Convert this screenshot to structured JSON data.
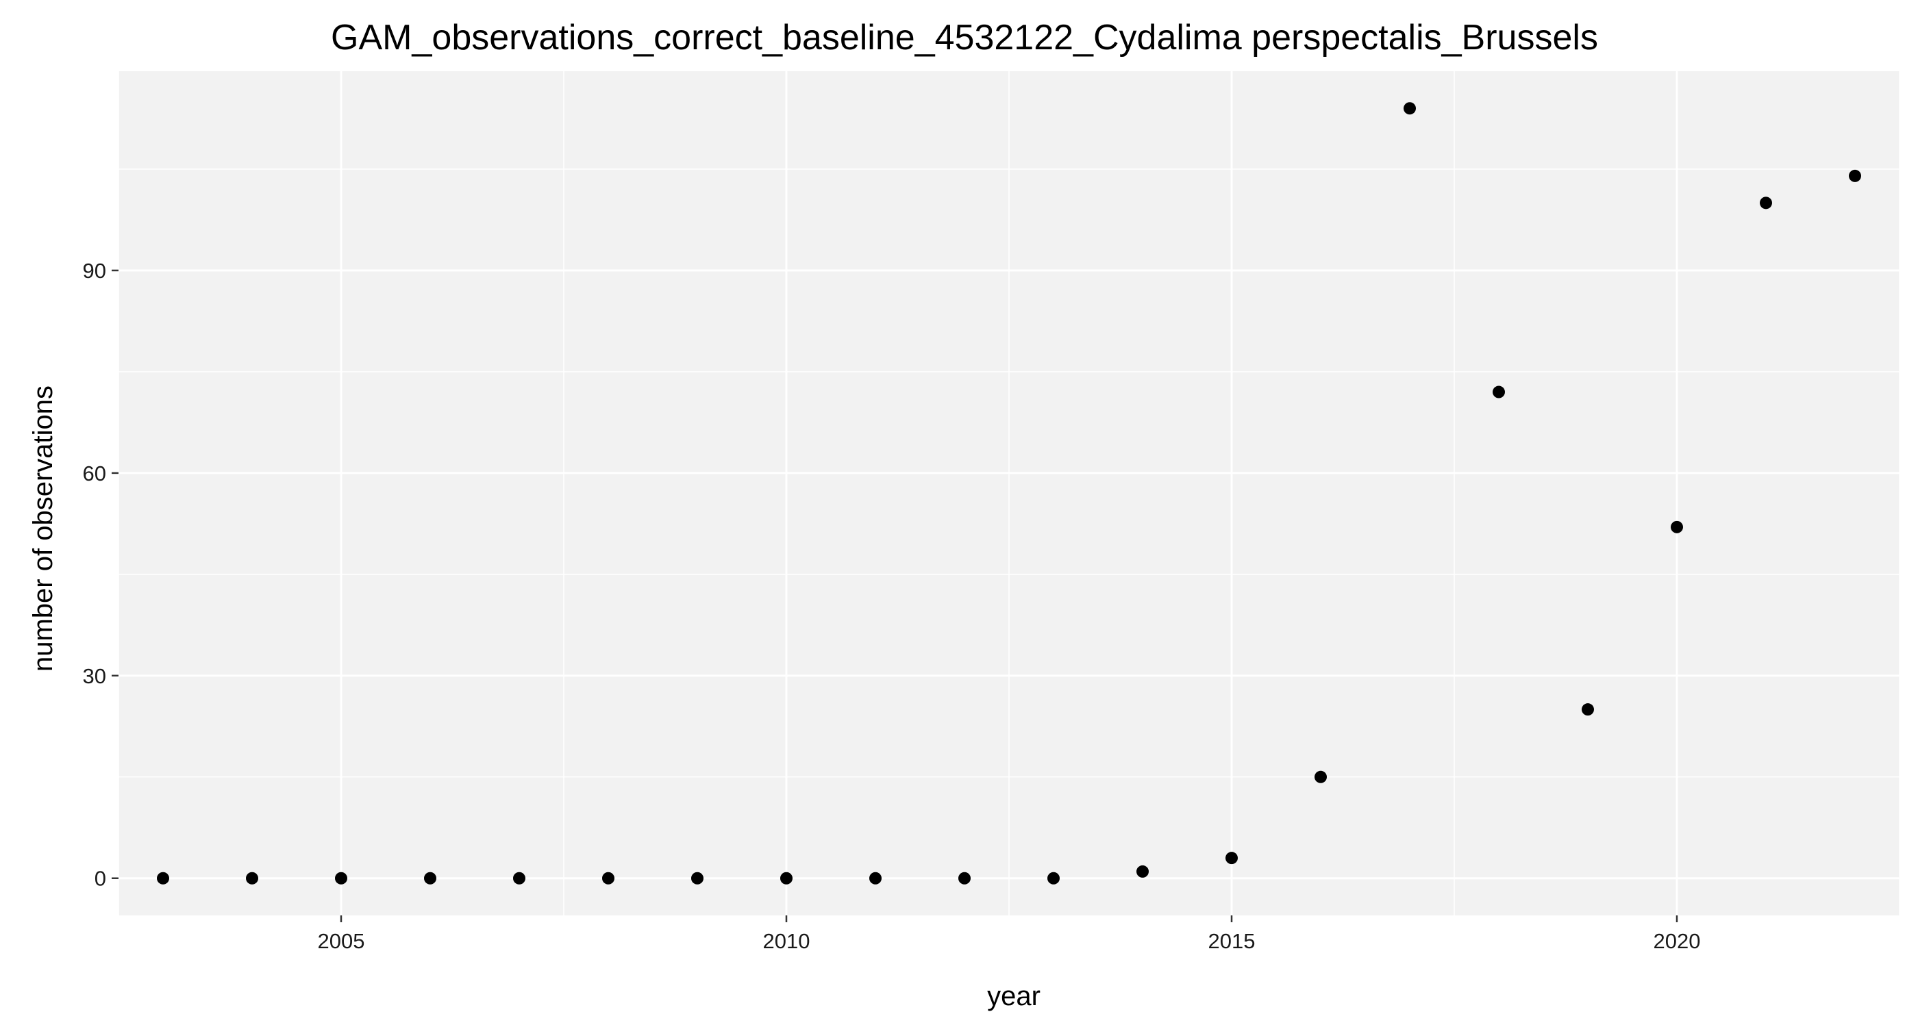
{
  "chart_data": {
    "type": "scatter",
    "title": "GAM_observations_correct_baseline_4532122_Cydalima perspectalis_Brussels",
    "xlabel": "year",
    "ylabel": "number of observations",
    "xlim": [
      2002.5,
      2022.5
    ],
    "ylim": [
      -5.5,
      119.5
    ],
    "x_ticks": [
      2005,
      2010,
      2015,
      2020
    ],
    "x_minor_ticks": [
      2002.5,
      2007.5,
      2012.5,
      2017.5,
      2022.5
    ],
    "y_ticks": [
      0,
      30,
      60,
      90
    ],
    "y_minor_ticks": [
      15,
      45,
      75,
      105
    ],
    "grid": true,
    "legend": "none",
    "colors": {
      "panel_background": "#f2f2f2",
      "grid": "#ffffff",
      "point": "#000000"
    },
    "points": [
      {
        "x": 2003,
        "y": 0
      },
      {
        "x": 2004,
        "y": 0
      },
      {
        "x": 2005,
        "y": 0
      },
      {
        "x": 2006,
        "y": 0
      },
      {
        "x": 2007,
        "y": 0
      },
      {
        "x": 2008,
        "y": 0
      },
      {
        "x": 2009,
        "y": 0
      },
      {
        "x": 2010,
        "y": 0
      },
      {
        "x": 2011,
        "y": 0
      },
      {
        "x": 2012,
        "y": 0
      },
      {
        "x": 2013,
        "y": 0
      },
      {
        "x": 2014,
        "y": 1
      },
      {
        "x": 2015,
        "y": 3
      },
      {
        "x": 2016,
        "y": 15
      },
      {
        "x": 2017,
        "y": 114
      },
      {
        "x": 2018,
        "y": 72
      },
      {
        "x": 2019,
        "y": 25
      },
      {
        "x": 2020,
        "y": 52
      },
      {
        "x": 2021,
        "y": 100
      },
      {
        "x": 2022,
        "y": 104
      }
    ]
  }
}
